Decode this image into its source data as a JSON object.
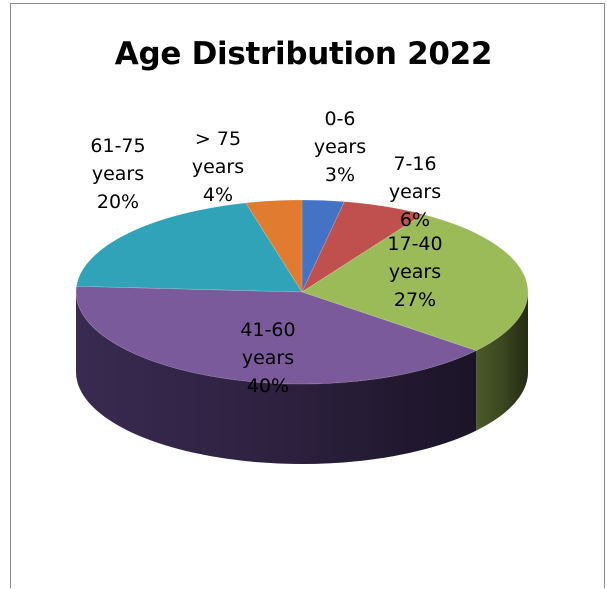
{
  "chart_data": {
    "type": "pie",
    "title": "Age Distribution 2022",
    "slices": [
      {
        "name": "0-6 years",
        "value": 3,
        "percent_label": "3%",
        "label_lines": [
          "0-6",
          "years",
          "3%"
        ],
        "color": "#4472c4",
        "side": "#2e4f8a",
        "top": "#3f6bb5"
      },
      {
        "name": "7-16 years",
        "value": 6,
        "percent_label": "6%",
        "label_lines": [
          "7-16",
          "years",
          "6%"
        ],
        "color": "#c0504d",
        "side": "#86302e",
        "top": "#b84542"
      },
      {
        "name": "17-40 years",
        "value": 27,
        "percent_label": "27%",
        "label_lines": [
          "17-40",
          "years",
          "27%"
        ],
        "color": "#9bbb59",
        "side": "#4f5f2a",
        "top": "#8fb04c"
      },
      {
        "name": "41-60 years",
        "value": 40,
        "percent_label": "40%",
        "label_lines": [
          "41-60",
          "years",
          "40%"
        ],
        "color": "#7a5a9a",
        "side": "#3c2c55",
        "top": "#6f5090"
      },
      {
        "name": "61-75 years",
        "value": 20,
        "percent_label": "20%",
        "label_lines": [
          "61-75",
          "years",
          "20%"
        ],
        "color": "#31a3b8",
        "side": "#1f6b79",
        "top": "#2b97ab"
      },
      {
        "name": "> 75 years",
        "value": 4,
        "percent_label": "4%",
        "label_lines": [
          "> 75",
          "years",
          "4%"
        ],
        "color": "#e07b2f",
        "side": "#9a521c",
        "top": "#d8742a"
      }
    ],
    "legend": "none",
    "style": "3d-pie"
  }
}
